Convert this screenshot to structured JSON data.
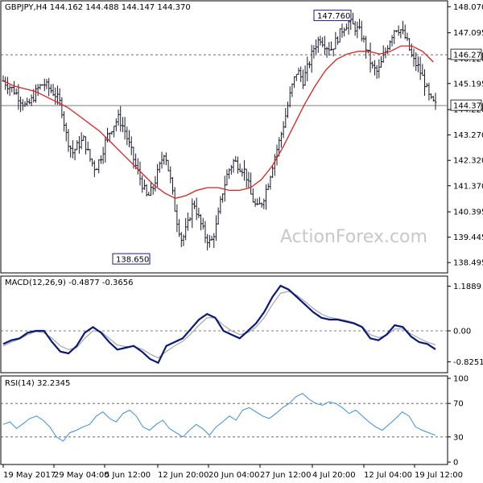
{
  "colors": {
    "background": "#ffffff",
    "border": "#000000",
    "bars": "#1a1a2e",
    "ma_line": "#e0201a",
    "macd_line": "#0a1a7a",
    "macd_signal": "#a0a0a0",
    "rsi_line": "#3a8fd8",
    "level_line": "#555555",
    "label_box": "#1a1a8a"
  },
  "chart_data": [
    {
      "type": "ohlc",
      "title": "GBPJPY,H4  144.162 144.488 144.147 144.370",
      "watermark": "ActionForex.com",
      "ylim": [
        138.2,
        148.2
      ],
      "y_ticks": [
        "148.070",
        "147.095",
        "146.120",
        "145.195",
        "144.220",
        "143.270",
        "142.320",
        "141.370",
        "140.395",
        "139.445",
        "138.495"
      ],
      "y_tick_values": [
        148.07,
        147.095,
        146.12,
        145.195,
        144.22,
        143.27,
        142.32,
        141.37,
        140.395,
        139.445,
        138.495
      ],
      "x_ticks": [
        "19 May 2017",
        "29 May 04:00",
        "5 Jun 12:00",
        "12 Jun 20:00",
        "20 Jun 04:00",
        "27 Jun 12:00",
        "4 Jul 20:00",
        "12 Jul 04:00",
        "19 Jul 12:00"
      ],
      "levels": [
        146.27,
        144.37
      ],
      "level_labels": [
        "146.270",
        "144.370"
      ],
      "annotations": [
        {
          "text": "147.760",
          "value": 147.76
        },
        {
          "text": "138.650",
          "value": 138.65
        }
      ],
      "close_path": [
        145.3,
        145.1,
        144.9,
        144.6,
        144.3,
        144.6,
        145.0,
        145.2,
        145.0,
        144.8,
        144.4,
        143.2,
        142.6,
        142.9,
        143.1,
        142.4,
        142.0,
        142.5,
        143.2,
        143.6,
        143.9,
        143.5,
        142.8,
        142.1,
        141.5,
        140.9,
        141.3,
        142.0,
        142.7,
        141.6,
        140.2,
        139.3,
        139.9,
        140.8,
        140.1,
        139.5,
        139.2,
        139.9,
        141.1,
        141.9,
        142.3,
        142.1,
        141.9,
        141.0,
        140.5,
        140.8,
        141.5,
        142.4,
        143.1,
        144.0,
        145.0,
        145.7,
        145.3,
        145.9,
        146.6,
        146.9,
        146.6,
        146.5,
        146.9,
        147.3,
        147.5,
        147.3,
        147.1,
        146.5,
        145.8,
        145.6,
        146.2,
        146.8,
        147.3,
        147.2,
        146.8,
        146.1,
        145.8,
        145.3,
        144.6,
        144.37
      ],
      "ma_line": [
        145.3,
        145.1,
        145.0,
        144.9,
        144.7,
        144.5,
        144.3,
        144.0,
        143.7,
        143.4,
        143.0,
        142.6,
        142.2,
        141.8,
        141.4,
        141.1,
        140.9,
        141.0,
        141.2,
        141.3,
        141.3,
        141.2,
        141.2,
        141.3,
        141.6,
        142.1,
        142.8,
        143.6,
        144.4,
        145.1,
        145.7,
        146.1,
        146.3,
        146.4,
        146.4,
        146.3,
        146.4,
        146.6,
        146.6,
        146.4,
        146.0
      ],
      "ma_start": 0.0,
      "ma_end": 0.975
    },
    {
      "type": "line",
      "title": "MACD(12,26,9) -0.4877 -0.3656",
      "ylim": [
        -1.05,
        1.35
      ],
      "y_ticks": [
        "1.1889",
        "0.00",
        "-0.8251"
      ],
      "y_tick_values": [
        1.1889,
        0.0,
        -0.8251
      ],
      "levels": [
        0.0
      ],
      "series": [
        {
          "values": [
            -0.35,
            -0.25,
            -0.2,
            -0.05,
            0.0,
            0.0,
            -0.3,
            -0.55,
            -0.6,
            -0.4,
            -0.05,
            0.1,
            -0.05,
            -0.3,
            -0.5,
            -0.45,
            -0.4,
            -0.55,
            -0.75,
            -0.85,
            -0.4,
            -0.3,
            -0.2,
            0.05,
            0.3,
            0.45,
            0.35,
            0.0,
            -0.1,
            -0.2,
            0.0,
            0.2,
            0.5,
            0.9,
            1.2,
            1.1,
            0.9,
            0.7,
            0.5,
            0.35,
            0.3,
            0.3,
            0.25,
            0.2,
            0.1,
            -0.2,
            -0.25,
            -0.1,
            0.15,
            0.1,
            -0.15,
            -0.3,
            -0.35,
            -0.49
          ]
        },
        {
          "values": [
            -0.4,
            -0.3,
            -0.22,
            -0.1,
            -0.02,
            -0.05,
            -0.2,
            -0.4,
            -0.5,
            -0.45,
            -0.2,
            0.0,
            -0.02,
            -0.2,
            -0.38,
            -0.42,
            -0.42,
            -0.48,
            -0.62,
            -0.72,
            -0.55,
            -0.4,
            -0.28,
            -0.08,
            0.15,
            0.35,
            0.35,
            0.15,
            0.0,
            -0.1,
            -0.05,
            0.1,
            0.35,
            0.7,
            1.0,
            1.05,
            0.95,
            0.78,
            0.6,
            0.45,
            0.36,
            0.32,
            0.28,
            0.22,
            0.12,
            -0.1,
            -0.18,
            -0.12,
            0.05,
            0.05,
            -0.08,
            -0.2,
            -0.3,
            -0.37
          ]
        }
      ]
    },
    {
      "type": "line",
      "title": "RSI(14) 32.2345",
      "ylim": [
        0,
        100
      ],
      "y_ticks": [
        "100",
        "70",
        "30",
        "0"
      ],
      "y_tick_values": [
        100,
        70,
        30,
        0
      ],
      "levels": [
        70,
        30
      ],
      "values": [
        45,
        48,
        40,
        46,
        52,
        55,
        50,
        42,
        30,
        25,
        35,
        38,
        42,
        45,
        55,
        60,
        52,
        48,
        58,
        62,
        55,
        42,
        38,
        45,
        50,
        40,
        35,
        30,
        38,
        45,
        40,
        32,
        42,
        48,
        55,
        50,
        62,
        65,
        60,
        55,
        52,
        58,
        65,
        70,
        78,
        82,
        75,
        70,
        68,
        72,
        70,
        65,
        58,
        62,
        55,
        48,
        42,
        38,
        45,
        52,
        60,
        55,
        42,
        38,
        35,
        32
      ]
    }
  ]
}
